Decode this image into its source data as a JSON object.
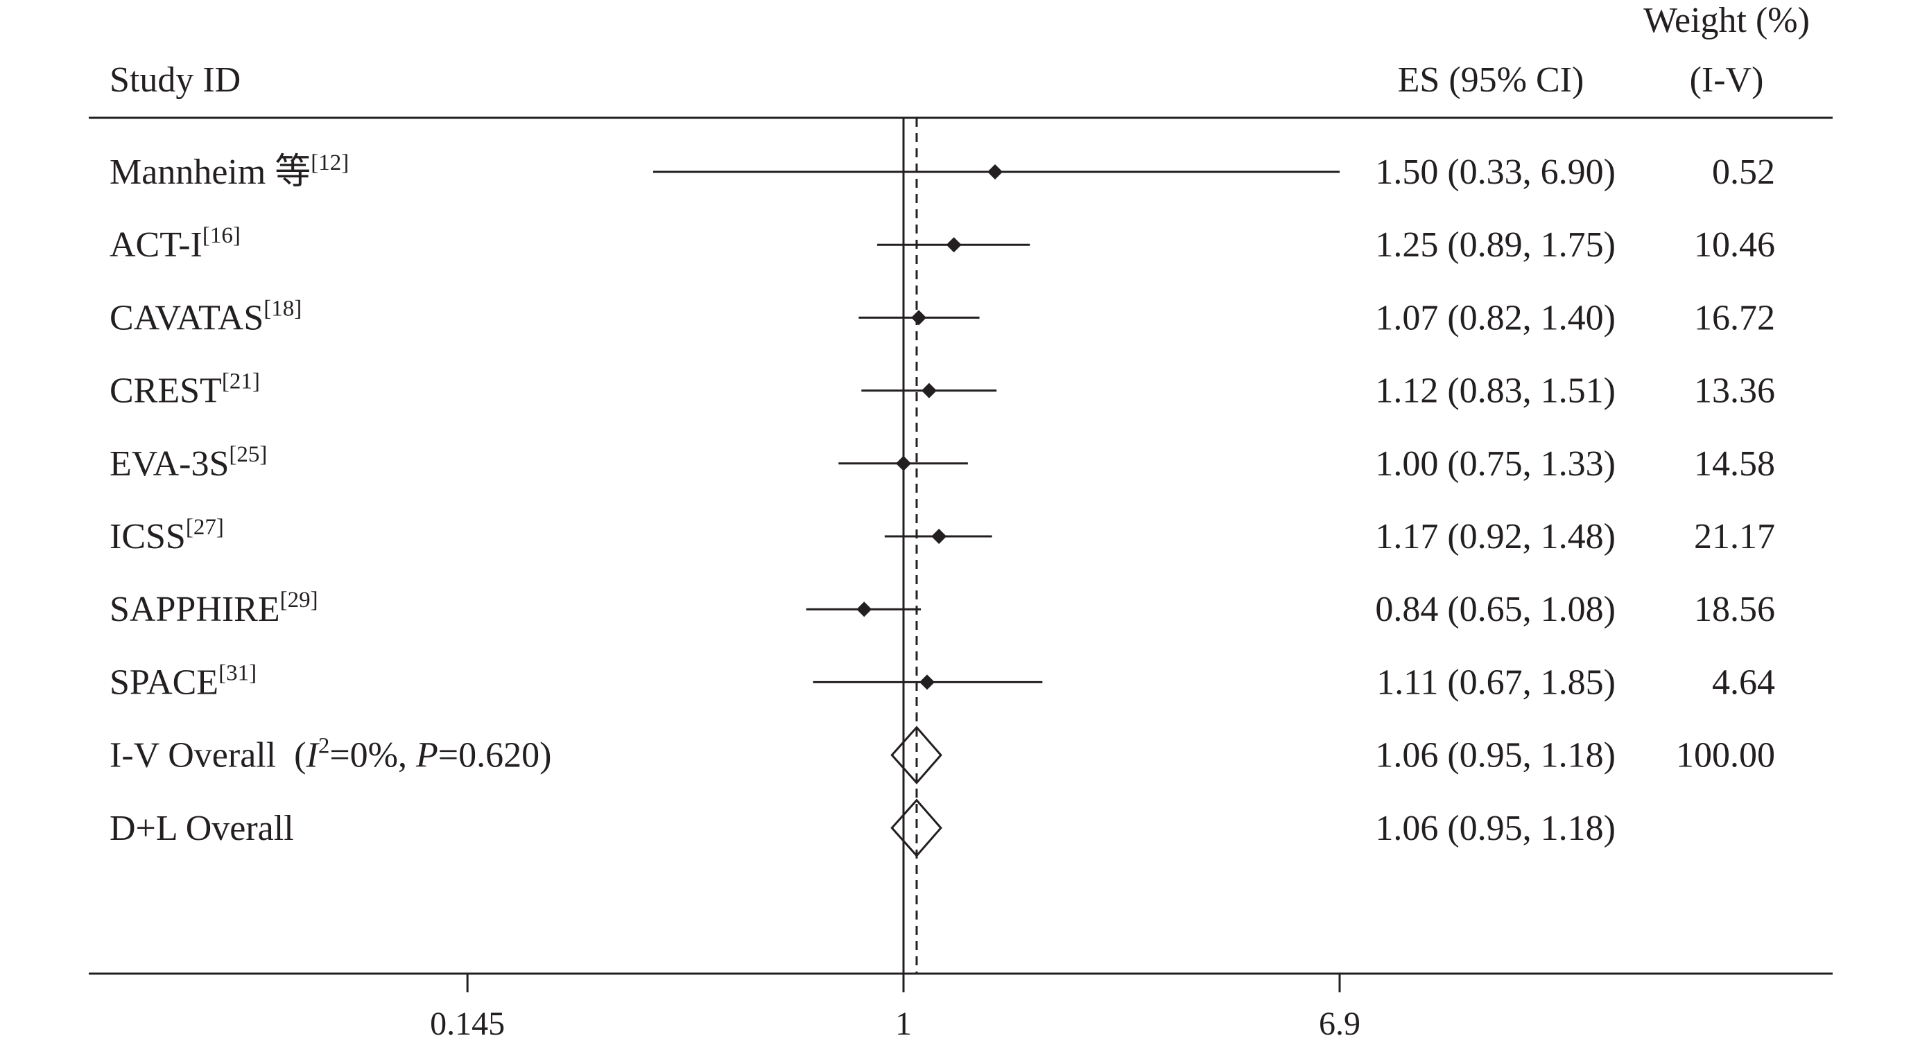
{
  "chart_data": {
    "type": "forest",
    "x_scale": "log",
    "headers": {
      "study": "Study ID",
      "es": "ES (95% CI)",
      "weight_line1": "Weight (%)",
      "weight_line2": "(I-V)"
    },
    "null_value": 1,
    "pooled_estimate_line": 1.06,
    "x_ticks": [
      {
        "value": 0.145,
        "label": "0.145"
      },
      {
        "value": 1,
        "label": "1"
      },
      {
        "value": 6.9,
        "label": "6.9"
      }
    ],
    "studies": [
      {
        "name": "Mannheim 等",
        "ref": "[12]",
        "es": 1.5,
        "lo": 0.33,
        "hi": 6.9,
        "es_text": "1.50 (0.33, 6.90)",
        "weight": "0.52"
      },
      {
        "name": "ACT-I",
        "ref": "[16]",
        "es": 1.25,
        "lo": 0.89,
        "hi": 1.75,
        "es_text": "1.25 (0.89, 1.75)",
        "weight": "10.46"
      },
      {
        "name": "CAVATAS",
        "ref": "[18]",
        "es": 1.07,
        "lo": 0.82,
        "hi": 1.4,
        "es_text": "1.07 (0.82, 1.40)",
        "weight": "16.72"
      },
      {
        "name": "CREST",
        "ref": "[21]",
        "es": 1.12,
        "lo": 0.83,
        "hi": 1.51,
        "es_text": "1.12 (0.83, 1.51)",
        "weight": "13.36"
      },
      {
        "name": "EVA-3S",
        "ref": "[25]",
        "es": 1.0,
        "lo": 0.75,
        "hi": 1.33,
        "es_text": "1.00 (0.75, 1.33)",
        "weight": "14.58"
      },
      {
        "name": "ICSS",
        "ref": "[27]",
        "es": 1.17,
        "lo": 0.92,
        "hi": 1.48,
        "es_text": "1.17 (0.92, 1.48)",
        "weight": "21.17"
      },
      {
        "name": "SAPPHIRE",
        "ref": "[29]",
        "es": 0.84,
        "lo": 0.65,
        "hi": 1.08,
        "es_text": "0.84 (0.65, 1.08)",
        "weight": "18.56"
      },
      {
        "name": "SPACE",
        "ref": "[31]",
        "es": 1.11,
        "lo": 0.67,
        "hi": 1.85,
        "es_text": "1.11 (0.67, 1.85)",
        "weight": "4.64"
      }
    ],
    "overall": [
      {
        "label": "I-V Overall",
        "het_i": "I",
        "het_sup": "2",
        "het_mid": "=0%, ",
        "het_p": "P",
        "het_pval": "=0.620)",
        "het_open": "(",
        "es": 1.06,
        "lo": 0.95,
        "hi": 1.18,
        "es_text": "1.06 (0.95, 1.18)",
        "weight": "100.00"
      },
      {
        "label": "D+L Overall",
        "es": 1.06,
        "lo": 0.95,
        "hi": 1.18,
        "es_text": "1.06 (0.95, 1.18)",
        "weight": ""
      }
    ]
  }
}
